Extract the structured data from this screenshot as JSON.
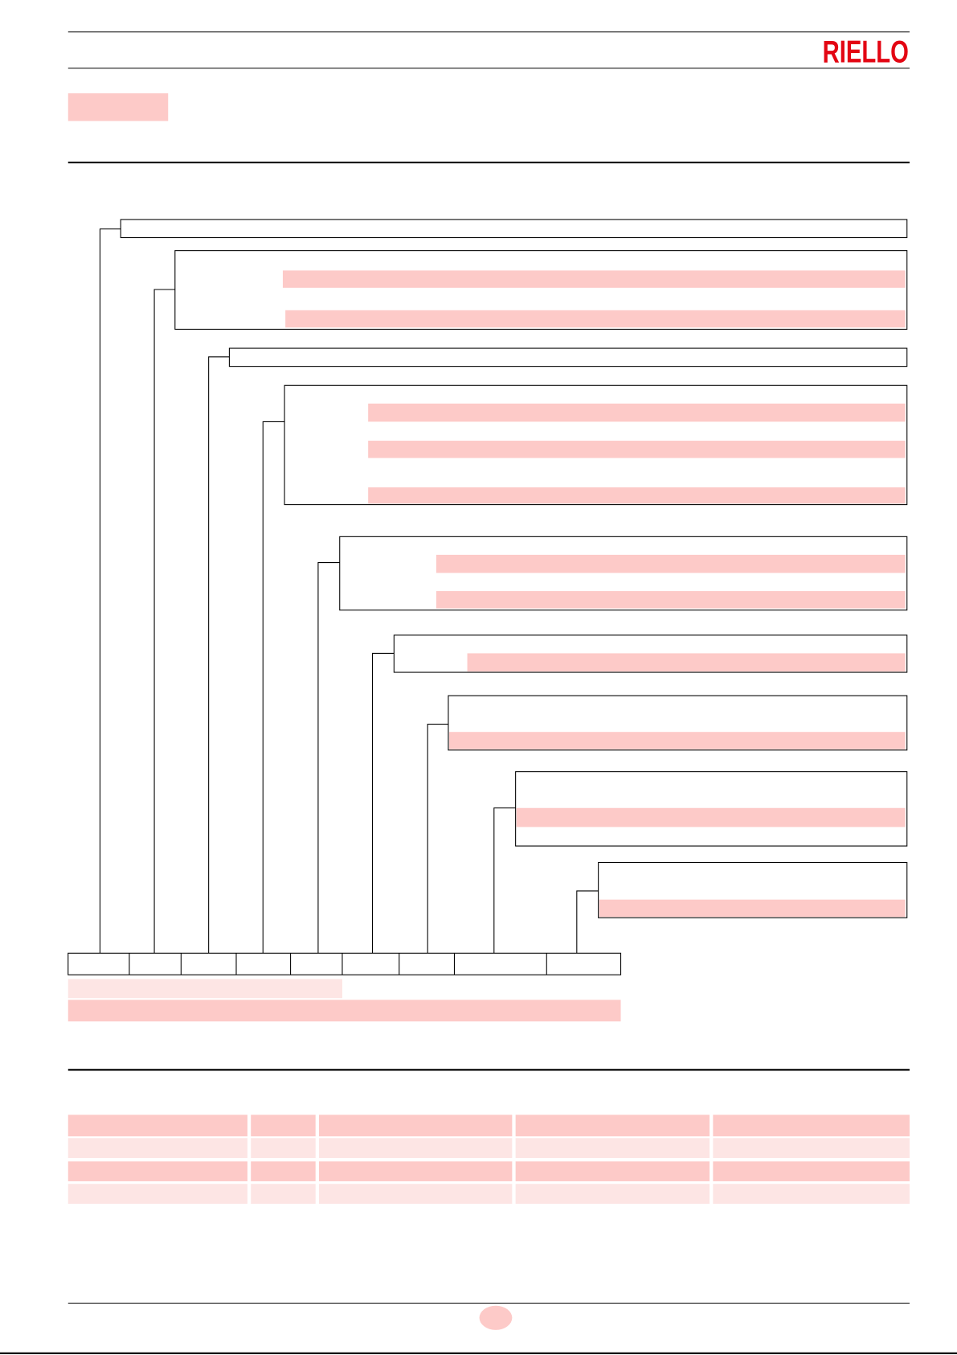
{
  "header": {
    "logo": "RIELLO"
  }
}
